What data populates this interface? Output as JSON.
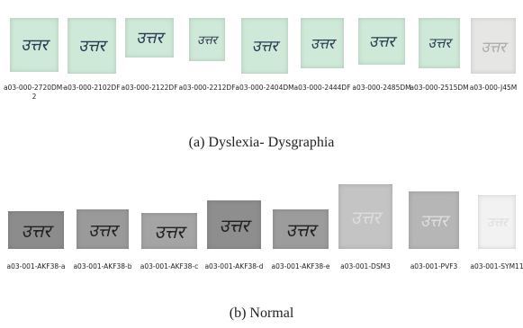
{
  "handwritten_word": "उत्तर",
  "groups": [
    {
      "caption": "(a) Dyslexia- Dysgraphia",
      "items": [
        "a03-000-2720DM-2",
        "a03-000-2102DF",
        "a03-000-2122DF",
        "a03-000-2212DF",
        "a03-000-2404DM",
        "a03-000-2444DF",
        "a03-000-2485DM",
        "a03-000-2515DM",
        "a03-000-J45M"
      ]
    },
    {
      "caption": "(b) Normal",
      "items": [
        "a03-001-AKF38-a",
        "a03-001-AKF38-b",
        "a03-001-AKF38-c",
        "a03-001-AKF38-d",
        "a03-001-AKF38-e",
        "a03-001-DSM3",
        "a03-001-PVF3",
        "a03-001-SYM11"
      ]
    }
  ]
}
